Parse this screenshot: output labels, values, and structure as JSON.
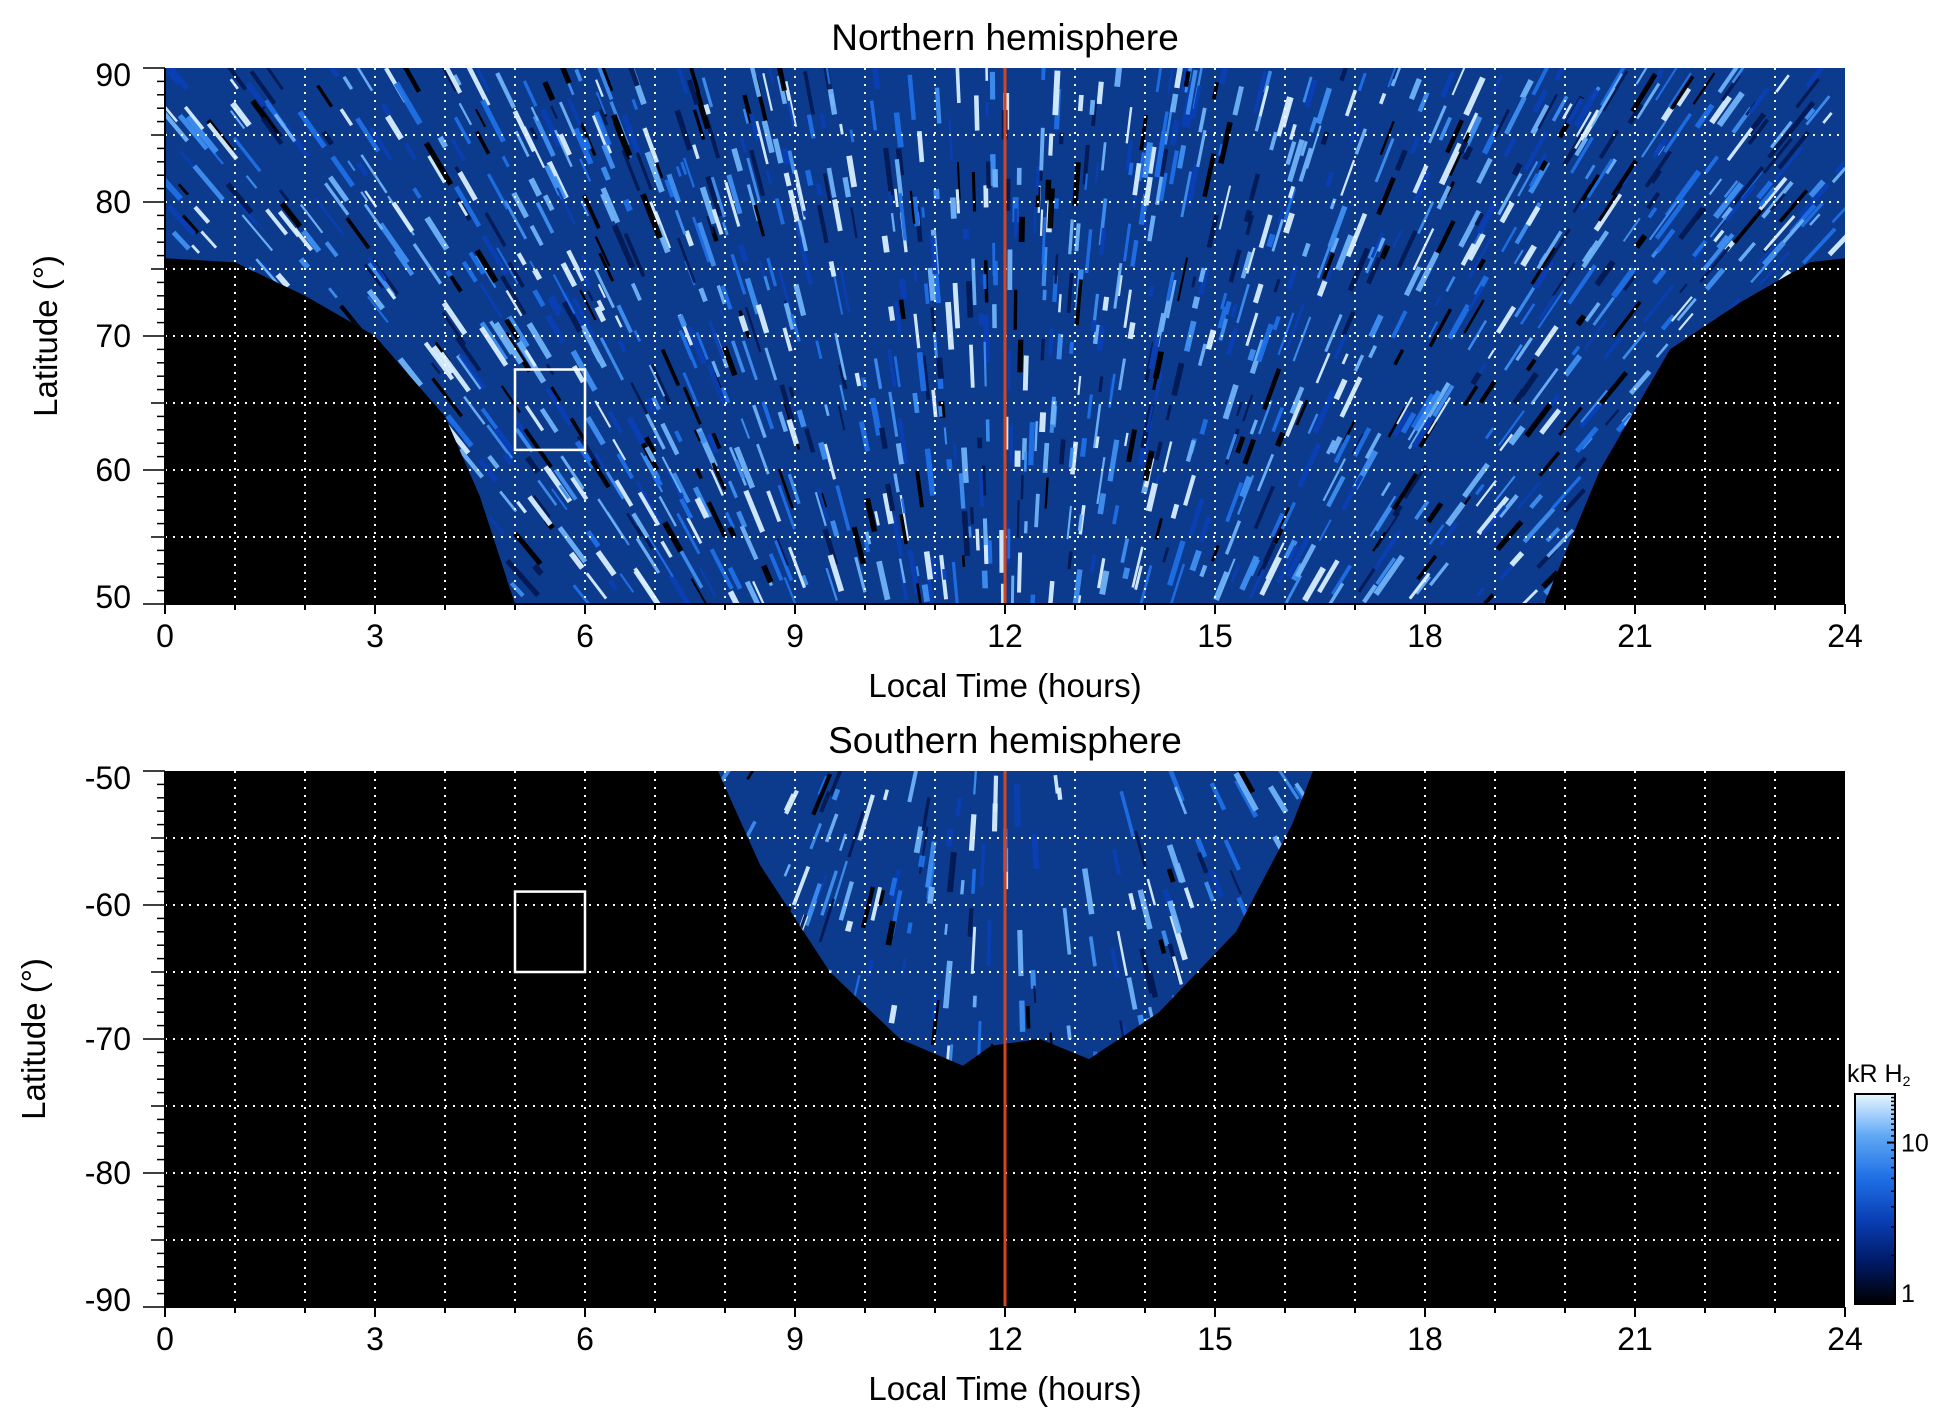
{
  "chart_data": [
    {
      "type": "heatmap",
      "title": "Northern hemisphere",
      "xlabel": "Local Time (hours)",
      "ylabel": "Latitude (°)",
      "xlim": [
        0,
        24
      ],
      "ylim": [
        50,
        90
      ],
      "x_ticks": [
        0,
        3,
        6,
        9,
        12,
        15,
        18,
        21,
        24
      ],
      "y_ticks": [
        50,
        60,
        70,
        80,
        90
      ],
      "grid": true,
      "grid_style": "dotted white, every 1 hour and every 5 degrees",
      "vertical_line": {
        "x": 12,
        "color": "#d2451e"
      },
      "box": {
        "x": [
          5,
          6
        ],
        "y": [
          61.5,
          67.5
        ],
        "color": "#ffffff"
      },
      "coverage": {
        "description": "emission observed only inside a region bounded below by a curve; black elsewhere",
        "lower_boundary_latitude": [
          {
            "lt": 0,
            "lat": 75.8
          },
          {
            "lt": 1,
            "lat": 75.5
          },
          {
            "lt": 2,
            "lat": 73
          },
          {
            "lt": 3,
            "lat": 70
          },
          {
            "lt": 4,
            "lat": 64
          },
          {
            "lt": 4.5,
            "lat": 58
          },
          {
            "lt": 5,
            "lat": 50
          },
          {
            "lt": 19.7,
            "lat": 50
          },
          {
            "lt": 20.5,
            "lat": 60
          },
          {
            "lt": 21.5,
            "lat": 69
          },
          {
            "lt": 22.5,
            "lat": 72.5
          },
          {
            "lt": 23.5,
            "lat": 75.5
          },
          {
            "lt": 24,
            "lat": 75.8
          }
        ]
      },
      "colorscale": "black to blue to white (log)"
    },
    {
      "type": "heatmap",
      "title": "Southern hemisphere",
      "xlabel": "Local Time (hours)",
      "ylabel": "Latitude (°)",
      "xlim": [
        0,
        24
      ],
      "ylim": [
        -90,
        -50
      ],
      "x_ticks": [
        0,
        3,
        6,
        9,
        12,
        15,
        18,
        21,
        24
      ],
      "y_ticks": [
        -50,
        -60,
        -70,
        -80,
        -90
      ],
      "y_tick_labels": [
        "-50",
        "-60",
        "-70",
        "-80",
        "-90"
      ],
      "grid": true,
      "grid_style": "dotted white, every 1 hour and every 5 degrees",
      "vertical_line": {
        "x": 12,
        "color": "#d2451e"
      },
      "box": {
        "x": [
          5,
          6
        ],
        "y": [
          -65,
          -59
        ],
        "color": "#ffffff"
      },
      "coverage": {
        "description": "emission observed only inside a dome-shaped region around local noon; black elsewhere",
        "boundary_latitude": [
          {
            "lt": 7.9,
            "lat": -50
          },
          {
            "lt": 8.5,
            "lat": -57
          },
          {
            "lt": 9.5,
            "lat": -65
          },
          {
            "lt": 10.5,
            "lat": -70
          },
          {
            "lt": 11.4,
            "lat": -72
          },
          {
            "lt": 11.8,
            "lat": -70.5
          },
          {
            "lt": 12.5,
            "lat": -70
          },
          {
            "lt": 13.2,
            "lat": -71.5
          },
          {
            "lt": 14.2,
            "lat": -68
          },
          {
            "lt": 15.3,
            "lat": -62
          },
          {
            "lt": 16.1,
            "lat": -54
          },
          {
            "lt": 16.4,
            "lat": -50
          }
        ]
      },
      "colorscale": "black to blue to white (log)"
    }
  ],
  "colorbar": {
    "title": "kR H",
    "title_subscript": "2",
    "scale": "log",
    "tick_values": [
      1,
      10
    ],
    "tick_labels": [
      "1",
      "10"
    ],
    "colors": [
      "#000000",
      "#001a66",
      "#0a3fb5",
      "#1f6fe6",
      "#5fa8f5",
      "#e8f6ff"
    ]
  }
}
